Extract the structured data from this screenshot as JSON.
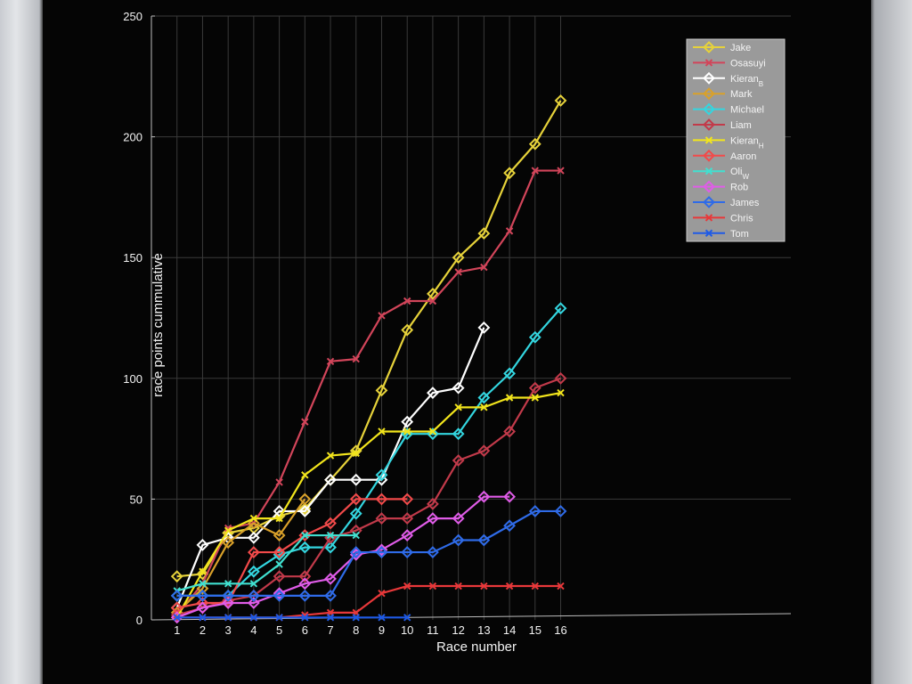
{
  "chart_data": {
    "type": "line",
    "xlabel": "Race number",
    "ylabel": "race points cummulative",
    "xlim": [
      0,
      25
    ],
    "ylim": [
      0,
      250
    ],
    "x_ticks": [
      1,
      2,
      3,
      4,
      5,
      6,
      7,
      8,
      9,
      10,
      11,
      12,
      13,
      14,
      15,
      16
    ],
    "y_ticks": [
      0,
      50,
      100,
      150,
      200,
      250
    ],
    "grid": true,
    "legend_position": "top-right",
    "series": [
      {
        "name": "Jake",
        "color": "#e6d23a",
        "marker": "diamond",
        "x": [
          1,
          2,
          3,
          4,
          5,
          6,
          7,
          8,
          9,
          10,
          11,
          12,
          13,
          14,
          15,
          16
        ],
        "values": [
          18,
          19,
          36,
          38,
          43,
          46,
          58,
          70,
          95,
          120,
          135,
          150,
          160,
          185,
          197,
          215
        ]
      },
      {
        "name": "Osasuyi",
        "color": "#d2455a",
        "marker": "x",
        "x": [
          1,
          2,
          3,
          4,
          5,
          6,
          7,
          8,
          9,
          10,
          11,
          12,
          13,
          14,
          15,
          16
        ],
        "values": [
          2,
          15,
          38,
          40,
          57,
          82,
          107,
          108,
          126,
          132,
          132,
          144,
          146,
          161,
          186,
          186
        ]
      },
      {
        "name": "Kieran_B",
        "color": "#ffffff",
        "marker": "diamond",
        "x": [
          1,
          2,
          3,
          4,
          5,
          6,
          7,
          8,
          9,
          10,
          11,
          12,
          13
        ],
        "values": [
          5,
          31,
          34,
          34,
          45,
          45,
          58,
          58,
          58,
          82,
          94,
          96,
          121
        ]
      },
      {
        "name": "Mark",
        "color": "#d9a12a",
        "marker": "diamond",
        "x": [
          1,
          2,
          3,
          4,
          5,
          6
        ],
        "values": [
          3,
          13,
          32,
          40,
          35,
          50
        ]
      },
      {
        "name": "Michael",
        "color": "#33d6e0",
        "marker": "diamond",
        "x": [
          1,
          2,
          3,
          4,
          5,
          6,
          7,
          8,
          9,
          10,
          11,
          12,
          13,
          14,
          15,
          16
        ],
        "values": [
          10,
          10,
          10,
          20,
          27,
          30,
          30,
          44,
          60,
          77,
          77,
          77,
          92,
          102,
          117,
          129
        ]
      },
      {
        "name": "Liam",
        "color": "#c23a4a",
        "marker": "diamond",
        "x": [
          1,
          2,
          3,
          4,
          5,
          6,
          7,
          8,
          9,
          10,
          11,
          12,
          13,
          14,
          15,
          16
        ],
        "values": [
          2,
          5,
          8,
          10,
          18,
          18,
          34,
          37,
          42,
          42,
          48,
          66,
          70,
          78,
          96,
          100
        ]
      },
      {
        "name": "Kieran_H",
        "color": "#f2e51c",
        "marker": "x",
        "x": [
          1,
          2,
          3,
          4,
          5,
          6,
          7,
          8,
          9,
          10,
          11,
          12,
          13,
          14,
          15,
          16
        ],
        "values": [
          1,
          20,
          37,
          42,
          42,
          60,
          68,
          69,
          78,
          78,
          78,
          88,
          88,
          92,
          92,
          94
        ]
      },
      {
        "name": "Aaron",
        "color": "#f24a4a",
        "marker": "diamond",
        "x": [
          1,
          2,
          3,
          4,
          5,
          6,
          7,
          8,
          9,
          10
        ],
        "values": [
          5,
          7,
          7,
          28,
          28,
          35,
          40,
          50,
          50,
          50
        ]
      },
      {
        "name": "Oli_W",
        "color": "#40e0d0",
        "marker": "x",
        "x": [
          1,
          2,
          3,
          4,
          5,
          6,
          7,
          8
        ],
        "values": [
          12,
          15,
          15,
          15,
          23,
          35,
          35,
          35
        ]
      },
      {
        "name": "Rob",
        "color": "#e05ce8",
        "marker": "diamond",
        "x": [
          1,
          2,
          3,
          4,
          5,
          6,
          7,
          8,
          9,
          10,
          11,
          12,
          13,
          14
        ],
        "values": [
          1,
          5,
          7,
          7,
          11,
          15,
          17,
          27,
          29,
          35,
          42,
          42,
          51,
          51
        ]
      },
      {
        "name": "James",
        "color": "#2f6be8",
        "marker": "diamond",
        "x": [
          1,
          2,
          3,
          4,
          5,
          6,
          7,
          8,
          9,
          10,
          11,
          12,
          13,
          14,
          15,
          16
        ],
        "values": [
          10,
          10,
          10,
          10,
          10,
          10,
          10,
          28,
          28,
          28,
          28,
          33,
          33,
          39,
          45,
          45
        ]
      },
      {
        "name": "Chris",
        "color": "#e8383a",
        "marker": "x",
        "x": [
          1,
          2,
          3,
          4,
          5,
          6,
          7,
          8,
          9,
          10,
          11,
          12,
          13,
          14,
          15,
          16
        ],
        "values": [
          1,
          1,
          1,
          1,
          1,
          2,
          3,
          3,
          11,
          14,
          14,
          14,
          14,
          14,
          14,
          14
        ]
      },
      {
        "name": "Tom",
        "color": "#1e5ae6",
        "marker": "x",
        "x": [
          1,
          2,
          3,
          4,
          5,
          6,
          7,
          8,
          9,
          10
        ],
        "values": [
          1,
          1,
          1,
          1,
          1,
          1,
          1,
          1,
          1,
          1
        ]
      }
    ]
  }
}
